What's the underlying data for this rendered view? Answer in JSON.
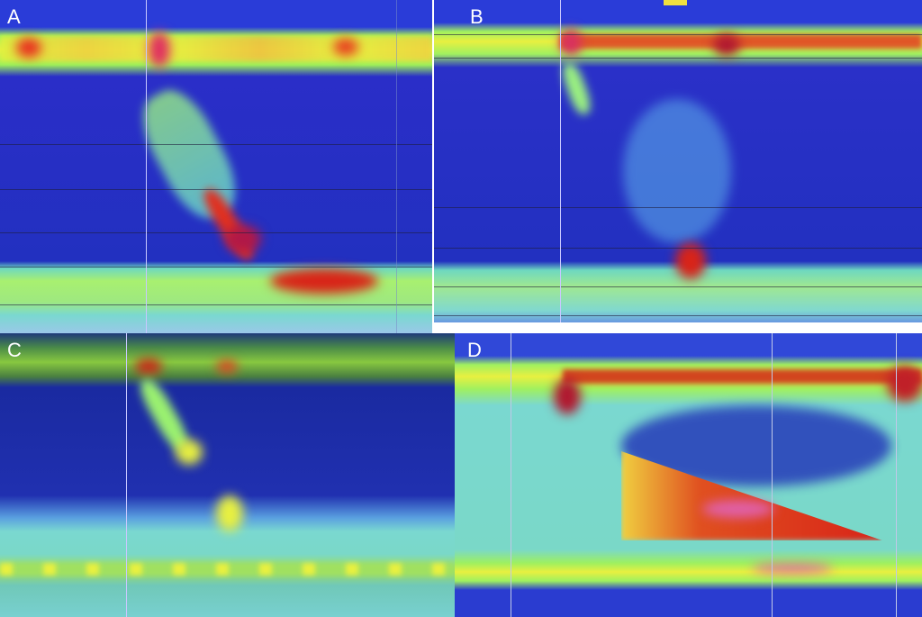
{
  "panels": [
    {
      "label": "A"
    },
    {
      "label": "B"
    },
    {
      "label": "C"
    },
    {
      "label": "D"
    }
  ],
  "colors": {
    "low_pressure": "#1e2ad0",
    "mid_pressure": "#7fe0c8",
    "high_pressure": "#e8ff3a",
    "peak_pressure": "#d4141e",
    "max_pressure": "#e060a8"
  }
}
